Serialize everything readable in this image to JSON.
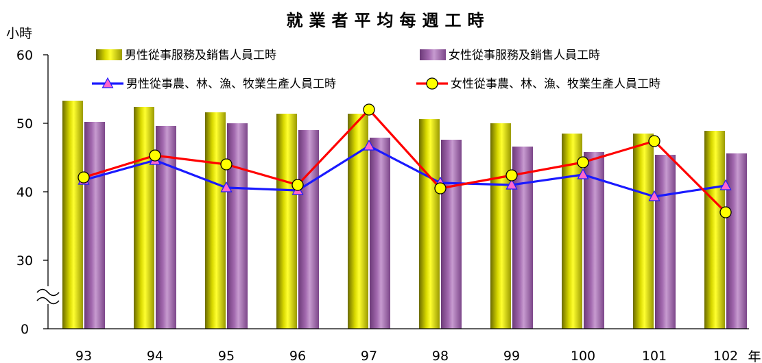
{
  "chart_data": {
    "type": "bar",
    "title": "就業者平均每週工時",
    "y_unit": "小時",
    "x_unit": "年",
    "categories": [
      "93",
      "94",
      "95",
      "96",
      "97",
      "98",
      "99",
      "100",
      "101",
      "102"
    ],
    "y_ticks": [
      "60",
      "50",
      "40",
      "30",
      "0"
    ],
    "ylim": [
      0,
      60
    ],
    "axis_break": "between 0 and 30",
    "grid": false,
    "legend_position": "top",
    "bar_series": [
      {
        "name": "男性從事服務及銷售人員工時",
        "color": "#d6d600",
        "values": [
          53.3,
          52.4,
          51.6,
          51.4,
          51.4,
          50.6,
          50.0,
          48.5,
          48.5,
          48.9
        ]
      },
      {
        "name": "女性從事服務及銷售人員工時",
        "color": "#a569b0",
        "values": [
          50.2,
          49.6,
          50.0,
          49.0,
          47.9,
          47.6,
          46.6,
          45.8,
          45.4,
          45.6
        ]
      }
    ],
    "line_series": [
      {
        "name": "男性從事農、林、漁、牧業生產人員工時",
        "color": "#1a1aff",
        "marker": "triangle",
        "marker_color": "#ff66cc",
        "values": [
          41.7,
          44.6,
          40.6,
          40.2,
          46.7,
          41.3,
          41.0,
          42.5,
          39.3,
          40.9
        ]
      },
      {
        "name": "女性從事農、林、漁、牧業生產人員工時",
        "color": "#ff0000",
        "marker": "circle",
        "marker_color": "#ffff00",
        "values": [
          42.1,
          45.3,
          44.0,
          41.0,
          52.0,
          40.5,
          42.4,
          44.3,
          47.4,
          37.0
        ]
      }
    ]
  }
}
